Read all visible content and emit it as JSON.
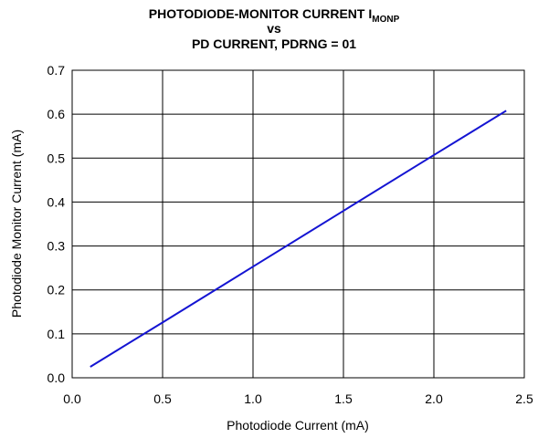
{
  "chart_data": {
    "type": "line",
    "title_lines": [
      "PHOTODIODE-MONITOR CURRENT I",
      "vs",
      "PD CURRENT, PDRNG = 01"
    ],
    "title_subscript": "MONP",
    "x_label": "Photodiode Current (mA)",
    "y_label": "Photodiode Monitor Current (mA)",
    "x": [
      0.1,
      0.5,
      1.0,
      1.5,
      2.0,
      2.4
    ],
    "series": [
      {
        "name": "IMONP",
        "color": "#1414d2",
        "values": [
          0.025,
          0.126,
          0.253,
          0.38,
          0.507,
          0.608
        ]
      }
    ],
    "xlim": [
      0,
      2.5
    ],
    "xticks": [
      {
        "value": 0,
        "label": "0.0"
      },
      0.5,
      {
        "value": 1,
        "label": "1.0"
      },
      1.5,
      {
        "value": 2,
        "label": "2.0"
      },
      2.5
    ],
    "ylim": [
      0,
      0.7
    ],
    "yticks": [
      {
        "value": 0,
        "label": "0.0"
      },
      0.1,
      0.2,
      0.3,
      0.4,
      0.5,
      0.6,
      0.7
    ],
    "grid": true
  }
}
